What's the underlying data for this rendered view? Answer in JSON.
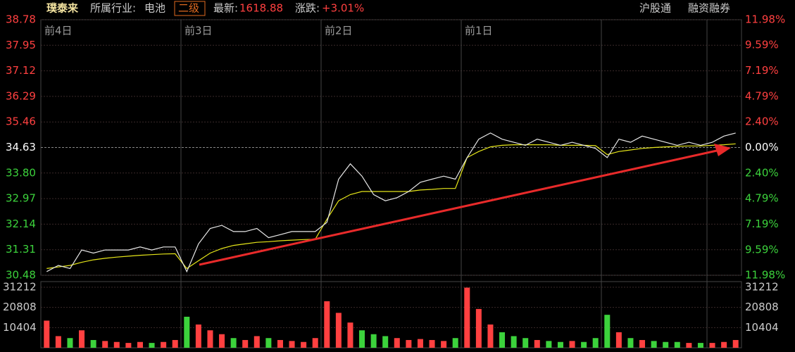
{
  "header": {
    "name": "璞泰来",
    "industry_label": "所属行业:",
    "industry": "电池",
    "level": "二级",
    "latest_label": "最新:",
    "latest": "1618.88",
    "change_label": "涨跌:",
    "change": "+3.01%",
    "links": [
      "沪股通",
      "融资融券"
    ]
  },
  "chart_data": {
    "type": "line",
    "day_labels": [
      "前4日",
      "前3日",
      "前2日",
      "前1日"
    ],
    "ylim": [
      30.48,
      38.78
    ],
    "yticks": [
      38.78,
      37.95,
      37.12,
      36.29,
      35.46,
      34.63,
      {
        "value": 33.8,
        "label": "33.80"
      },
      32.97,
      32.14,
      31.31,
      30.48
    ],
    "y2lim": [
      -11.98,
      11.98
    ],
    "y2ticks": [
      {
        "value": 11.98,
        "label": "11.98%"
      },
      {
        "value": 9.59,
        "label": "9.59%"
      },
      {
        "value": 7.19,
        "label": "7.19%"
      },
      {
        "value": 4.79,
        "label": "4.79%"
      },
      {
        "value": 2.4,
        "label": "2.40%"
      },
      {
        "value": 0,
        "label": "0.00%"
      },
      {
        "value": -2.4,
        "label": "2.40%"
      },
      {
        "value": -4.79,
        "label": "4.79%"
      },
      {
        "value": -7.19,
        "label": "7.19%"
      },
      {
        "value": -9.59,
        "label": "9.59%"
      },
      {
        "value": -11.98,
        "label": "11.98%"
      }
    ],
    "up_color": "#ff4040",
    "down_color": "#3cd23c",
    "series": [
      {
        "name": "price",
        "color": "#e8e8e8",
        "values": [
          30.6,
          30.8,
          30.7,
          31.3,
          31.2,
          31.3,
          31.3,
          31.3,
          31.4,
          31.3,
          31.4,
          31.4,
          30.6,
          31.5,
          32.0,
          32.1,
          31.9,
          31.9,
          32.0,
          31.7,
          31.8,
          31.9,
          31.9,
          31.9,
          32.2,
          33.6,
          34.1,
          33.7,
          33.1,
          32.9,
          33.0,
          33.2,
          33.5,
          33.6,
          33.7,
          33.6,
          34.3,
          34.9,
          35.1,
          34.9,
          34.8,
          34.7,
          34.9,
          34.8,
          34.7,
          34.8,
          34.7,
          34.6,
          34.3,
          34.9,
          34.8,
          35.0,
          34.9,
          34.8,
          34.7,
          34.8,
          34.7,
          34.8,
          35.0,
          35.1
        ]
      },
      {
        "name": "average",
        "color": "#e6e619",
        "values": [
          30.7,
          30.75,
          30.8,
          30.9,
          30.98,
          31.03,
          31.07,
          31.1,
          31.13,
          31.15,
          31.17,
          31.18,
          30.7,
          30.95,
          31.2,
          31.35,
          31.45,
          31.5,
          31.55,
          31.57,
          31.6,
          31.62,
          31.64,
          31.65,
          32.3,
          32.9,
          33.1,
          33.2,
          33.2,
          33.2,
          33.2,
          33.2,
          33.25,
          33.27,
          33.3,
          33.3,
          34.3,
          34.5,
          34.65,
          34.7,
          34.72,
          34.72,
          34.72,
          34.72,
          34.7,
          34.7,
          34.7,
          34.69,
          34.4,
          34.5,
          34.55,
          34.6,
          34.63,
          34.65,
          34.67,
          34.68,
          34.68,
          34.7,
          34.72,
          34.75
        ]
      }
    ],
    "volume": {
      "ylim": [
        0,
        31212
      ],
      "yticks": [
        10404,
        20808,
        31212
      ],
      "values": [
        14000,
        6000,
        5000,
        9000,
        4000,
        3500,
        3000,
        2500,
        3000,
        2500,
        3000,
        4000,
        16000,
        12000,
        9000,
        7000,
        5000,
        4000,
        6000,
        5000,
        4000,
        3500,
        3000,
        5000,
        24000,
        18000,
        13000,
        9000,
        7000,
        6000,
        5000,
        4000,
        4500,
        4000,
        3500,
        5000,
        31000,
        20000,
        12000,
        8000,
        6000,
        5000,
        4000,
        3500,
        3000,
        3500,
        3000,
        5000,
        17000,
        8000,
        5000,
        4000,
        3500,
        3000,
        3000,
        2500,
        2500,
        2500,
        3000,
        4000
      ]
    }
  }
}
